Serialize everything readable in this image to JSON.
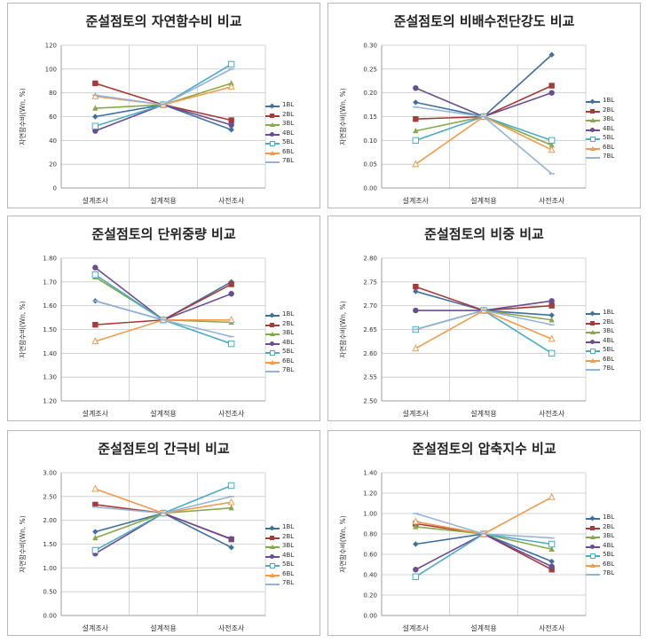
{
  "series_styles": [
    {
      "name": "1BL",
      "color": "#3e6f9e",
      "marker": "diamond"
    },
    {
      "name": "2BL",
      "color": "#a83a38",
      "marker": "square"
    },
    {
      "name": "3BL",
      "color": "#87a94a",
      "marker": "triangle"
    },
    {
      "name": "4BL",
      "color": "#6a4c93",
      "marker": "circle"
    },
    {
      "name": "5BL",
      "color": "#4aacc6",
      "marker": "hollow-square"
    },
    {
      "name": "6BL",
      "color": "#f49a4b",
      "marker": "triangle-outline"
    },
    {
      "name": "7BL",
      "color": "#94b3d9",
      "marker": "line-only"
    }
  ],
  "chart_data": [
    {
      "type": "line",
      "title": "준설점토의 자연함수비 비교",
      "ylabel": "자연함수비(Wn, %)",
      "categories": [
        "설계조사",
        "설계적용",
        "사전조사"
      ],
      "ylim": [
        0,
        120
      ],
      "yticks": [
        "0",
        "20",
        "40",
        "60",
        "80",
        "100",
        "120"
      ],
      "series": [
        {
          "name": "1BL",
          "values": [
            60,
            70,
            49
          ]
        },
        {
          "name": "2BL",
          "values": [
            88,
            70,
            57
          ]
        },
        {
          "name": "3BL",
          "values": [
            67,
            70,
            88
          ]
        },
        {
          "name": "4BL",
          "values": [
            48,
            70,
            53
          ]
        },
        {
          "name": "5BL",
          "values": [
            52,
            70,
            104
          ]
        },
        {
          "name": "6BL",
          "values": [
            77,
            70,
            85
          ]
        },
        {
          "name": "7BL",
          "values": [
            78,
            70,
            100
          ]
        }
      ]
    },
    {
      "type": "line",
      "title": "준설점토의 비배수전단강도 비교",
      "ylabel": "자연함수비(Wn, %)",
      "categories": [
        "설계조사",
        "설계적용",
        "사전조사"
      ],
      "ylim": [
        0,
        0.3
      ],
      "yticks": [
        "0.00",
        "0.05",
        "0.10",
        "0.15",
        "0.20",
        "0.25",
        "0.30"
      ],
      "series": [
        {
          "name": "1BL",
          "values": [
            0.18,
            0.15,
            0.28
          ]
        },
        {
          "name": "2BL",
          "values": [
            0.145,
            0.15,
            0.215
          ]
        },
        {
          "name": "3BL",
          "values": [
            0.12,
            0.15,
            0.09
          ]
        },
        {
          "name": "4BL",
          "values": [
            0.21,
            0.15,
            0.2
          ]
        },
        {
          "name": "5BL",
          "values": [
            0.1,
            0.15,
            0.1
          ]
        },
        {
          "name": "6BL",
          "values": [
            0.05,
            0.15,
            0.08
          ]
        },
        {
          "name": "7BL",
          "values": [
            0.17,
            0.15,
            0.03
          ]
        }
      ]
    },
    {
      "type": "line",
      "title": "준설점토의 단위중량 비교",
      "ylabel": "자연함수비(Wn, %)",
      "categories": [
        "설계조사",
        "설계적용",
        "사전조사"
      ],
      "ylim": [
        1.2,
        1.8
      ],
      "yticks": [
        "1.20",
        "1.30",
        "1.40",
        "1.50",
        "1.60",
        "1.70",
        "1.80"
      ],
      "series": [
        {
          "name": "1BL",
          "values": [
            1.62,
            1.54,
            1.7
          ]
        },
        {
          "name": "2BL",
          "values": [
            1.52,
            1.54,
            1.69
          ]
        },
        {
          "name": "3BL",
          "values": [
            1.72,
            1.54,
            1.53
          ]
        },
        {
          "name": "4BL",
          "values": [
            1.76,
            1.54,
            1.65
          ]
        },
        {
          "name": "5BL",
          "values": [
            1.73,
            1.54,
            1.44
          ]
        },
        {
          "name": "6BL",
          "values": [
            1.45,
            1.54,
            1.54
          ]
        },
        {
          "name": "7BL",
          "values": [
            1.62,
            1.54,
            1.47
          ]
        }
      ]
    },
    {
      "type": "line",
      "title": "준설점토의 비중 비교",
      "ylabel": "자연함수비(Wn, %)",
      "categories": [
        "설계조사",
        "설계적용",
        "사전조사"
      ],
      "ylim": [
        2.5,
        2.8
      ],
      "yticks": [
        "2.50",
        "2.55",
        "2.60",
        "2.65",
        "2.70",
        "2.75",
        "2.80"
      ],
      "series": [
        {
          "name": "1BL",
          "values": [
            2.73,
            2.69,
            2.68
          ]
        },
        {
          "name": "2BL",
          "values": [
            2.74,
            2.69,
            2.7
          ]
        },
        {
          "name": "3BL",
          "values": [
            2.65,
            2.69,
            2.67
          ]
        },
        {
          "name": "4BL",
          "values": [
            2.69,
            2.69,
            2.71
          ]
        },
        {
          "name": "5BL",
          "values": [
            2.65,
            2.69,
            2.6
          ]
        },
        {
          "name": "6BL",
          "values": [
            2.61,
            2.69,
            2.63
          ]
        },
        {
          "name": "7BL",
          "values": [
            2.65,
            2.69,
            2.66
          ]
        }
      ]
    },
    {
      "type": "line",
      "title": "준설점토의 간극비 비교",
      "ylabel": "자연함수비(Wn, %)",
      "categories": [
        "설계조사",
        "설계적용",
        "사전조사"
      ],
      "ylim": [
        0,
        3
      ],
      "yticks": [
        "0.00",
        "0.50",
        "1.00",
        "1.50",
        "2.00",
        "2.50",
        "3.00"
      ],
      "series": [
        {
          "name": "1BL",
          "values": [
            1.76,
            2.15,
            1.43
          ]
        },
        {
          "name": "2BL",
          "values": [
            2.33,
            2.15,
            1.6
          ]
        },
        {
          "name": "3BL",
          "values": [
            1.63,
            2.15,
            2.26
          ]
        },
        {
          "name": "4BL",
          "values": [
            1.3,
            2.15,
            1.61
          ]
        },
        {
          "name": "5BL",
          "values": [
            1.37,
            2.15,
            2.73
          ]
        },
        {
          "name": "6BL",
          "values": [
            2.66,
            2.15,
            2.38
          ]
        },
        {
          "name": "7BL",
          "values": [
            2.28,
            2.15,
            2.5
          ]
        }
      ]
    },
    {
      "type": "line",
      "title": "준설점토의 압축지수 비교",
      "ylabel": "자연함수비(Wn, %)",
      "categories": [
        "설계조사",
        "설계적용",
        "사전조사"
      ],
      "ylim": [
        0,
        1.4
      ],
      "yticks": [
        "0.00",
        "0.20",
        "0.40",
        "0.60",
        "0.80",
        "1.00",
        "1.20",
        "1.40"
      ],
      "series": [
        {
          "name": "1BL",
          "values": [
            0.7,
            0.8,
            0.53
          ]
        },
        {
          "name": "2BL",
          "values": [
            0.9,
            0.8,
            0.45
          ]
        },
        {
          "name": "3BL",
          "values": [
            0.87,
            0.8,
            0.65
          ]
        },
        {
          "name": "4BL",
          "values": [
            0.45,
            0.8,
            0.48
          ]
        },
        {
          "name": "5BL",
          "values": [
            0.38,
            0.8,
            0.7
          ]
        },
        {
          "name": "6BL",
          "values": [
            0.92,
            0.8,
            1.16
          ]
        },
        {
          "name": "7BL",
          "values": [
            1.0,
            0.8,
            0.76
          ]
        }
      ]
    }
  ]
}
